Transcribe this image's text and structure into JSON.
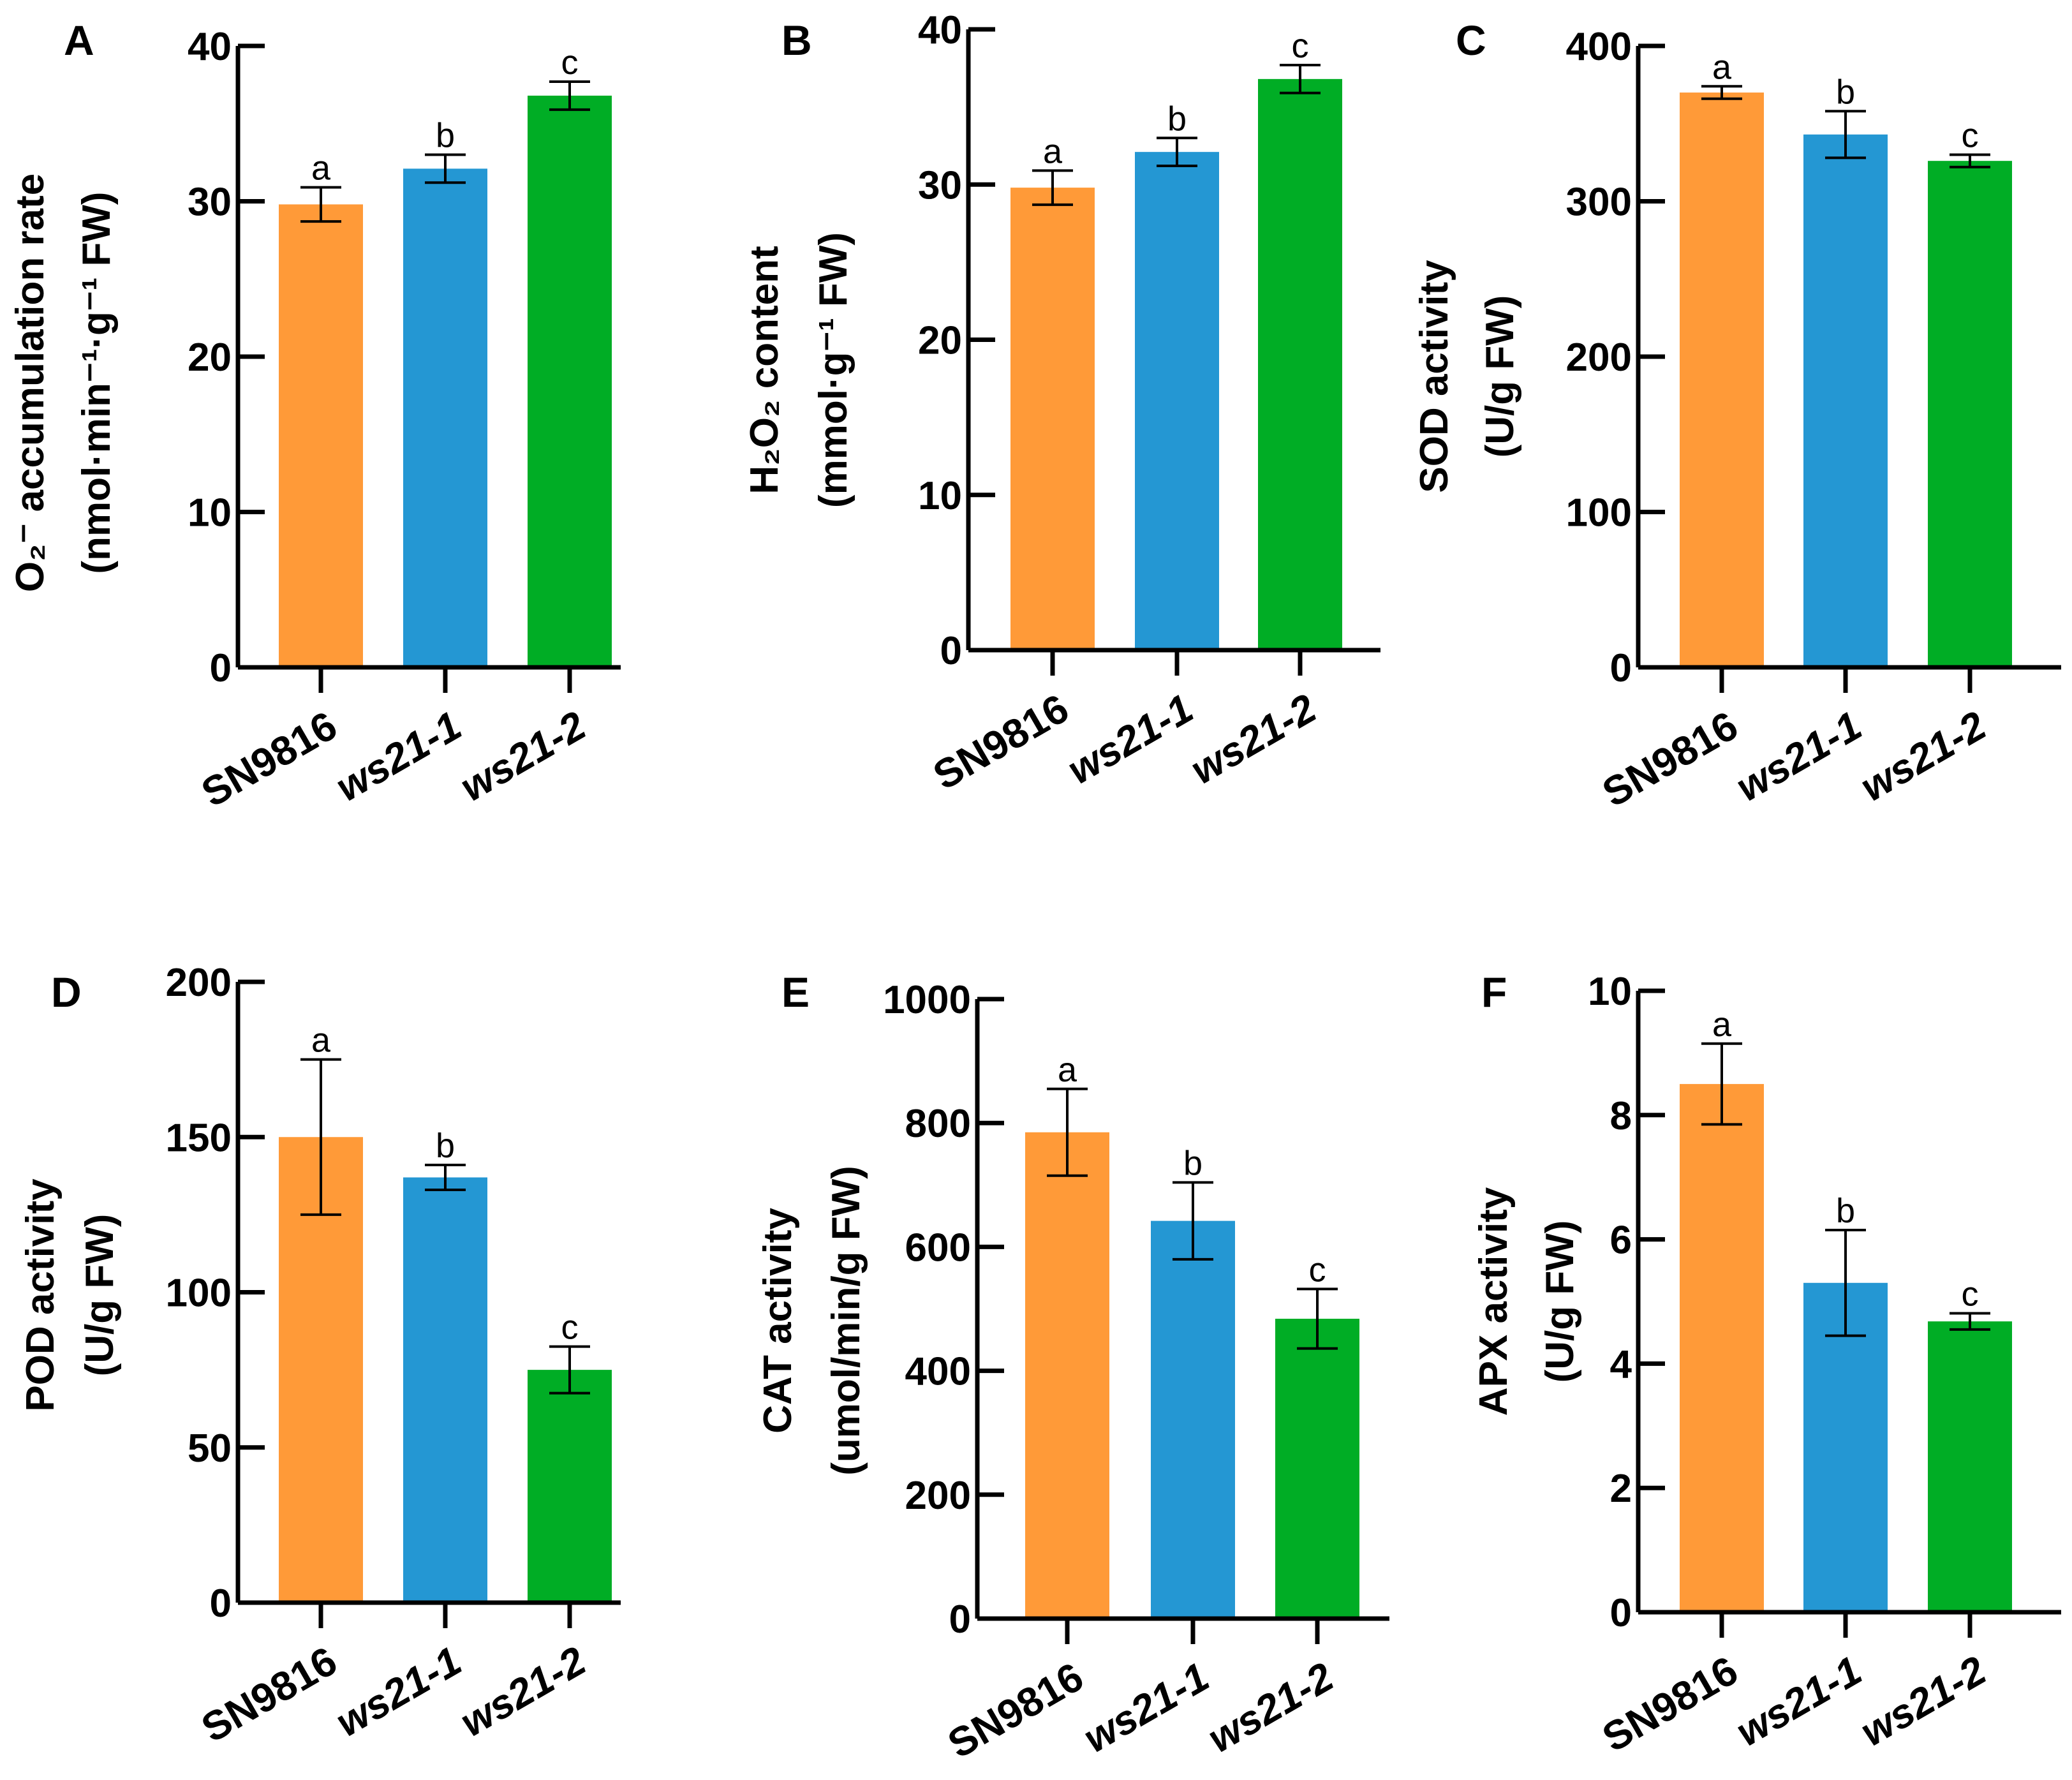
{
  "colors": {
    "SN9816": "#FF9A38",
    "ws21-1": "#2497D3",
    "ws21-2": "#00AD25",
    "axis": "#000000"
  },
  "chart_data": [
    {
      "panel": "A",
      "type": "bar",
      "categories": [
        "SN9816",
        "ws21-1",
        "ws21-2"
      ],
      "italic": [
        false,
        true,
        true
      ],
      "values": [
        29.8,
        32.1,
        36.8
      ],
      "errors": [
        1.1,
        0.9,
        0.9
      ],
      "significance": [
        "a",
        "b",
        "c"
      ],
      "ylabel": [
        "O₂⁻ accumulation rate",
        "(nmol·min⁻¹·g⁻¹ FW)"
      ],
      "ylim": [
        0,
        40
      ],
      "yticks": [
        0,
        10,
        20,
        30,
        40
      ]
    },
    {
      "panel": "B",
      "type": "bar",
      "categories": [
        "SN9816",
        "ws21-1",
        "ws21-2"
      ],
      "italic": [
        false,
        true,
        true
      ],
      "values": [
        29.8,
        32.1,
        36.8
      ],
      "errors": [
        1.1,
        0.9,
        0.9
      ],
      "significance": [
        "a",
        "b",
        "c"
      ],
      "ylabel": [
        "H₂O₂ content",
        "(mmol·g⁻¹ FW)"
      ],
      "ylim": [
        0,
        40
      ],
      "yticks": [
        0,
        10,
        20,
        30,
        40
      ]
    },
    {
      "panel": "C",
      "type": "bar",
      "categories": [
        "SN9816",
        "ws21-1",
        "ws21-2"
      ],
      "italic": [
        false,
        true,
        true
      ],
      "values": [
        370,
        343,
        326
      ],
      "errors": [
        4,
        15,
        4
      ],
      "significance": [
        "a",
        "b",
        "c"
      ],
      "ylabel": [
        "SOD activity",
        "(U/g FW)"
      ],
      "ylim": [
        0,
        400
      ],
      "yticks": [
        0,
        100,
        200,
        300,
        400
      ]
    },
    {
      "panel": "D",
      "type": "bar",
      "categories": [
        "SN9816",
        "ws21-1",
        "ws21-2"
      ],
      "italic": [
        false,
        true,
        true
      ],
      "values": [
        150,
        137,
        75
      ],
      "errors": [
        25,
        4,
        7.5
      ],
      "significance": [
        "a",
        "b",
        "c"
      ],
      "ylabel": [
        "POD activity",
        "(U/g FW)"
      ],
      "ylim": [
        0,
        200
      ],
      "yticks": [
        0,
        50,
        100,
        150,
        200
      ]
    },
    {
      "panel": "E",
      "type": "bar",
      "categories": [
        "SN9816",
        "ws21-1",
        "ws21-2"
      ],
      "italic": [
        false,
        true,
        true
      ],
      "values": [
        785,
        642,
        484
      ],
      "errors": [
        70,
        62,
        48
      ],
      "significance": [
        "a",
        "b",
        "c"
      ],
      "ylabel": [
        "CAT activity",
        "(umol/min/g FW)"
      ],
      "ylim": [
        0,
        1000
      ],
      "yticks": [
        0,
        200,
        400,
        600,
        800,
        1000
      ]
    },
    {
      "panel": "F",
      "type": "bar",
      "categories": [
        "SN9816",
        "ws21-1",
        "ws21-2"
      ],
      "italic": [
        false,
        true,
        true
      ],
      "values": [
        8.5,
        5.3,
        4.68
      ],
      "errors": [
        0.65,
        0.85,
        0.13
      ],
      "significance": [
        "a",
        "b",
        "c"
      ],
      "ylabel": [
        "APX activity",
        "(U/g FW)"
      ],
      "ylim": [
        0,
        10
      ],
      "yticks": [
        0,
        2,
        4,
        6,
        8,
        10
      ]
    }
  ]
}
